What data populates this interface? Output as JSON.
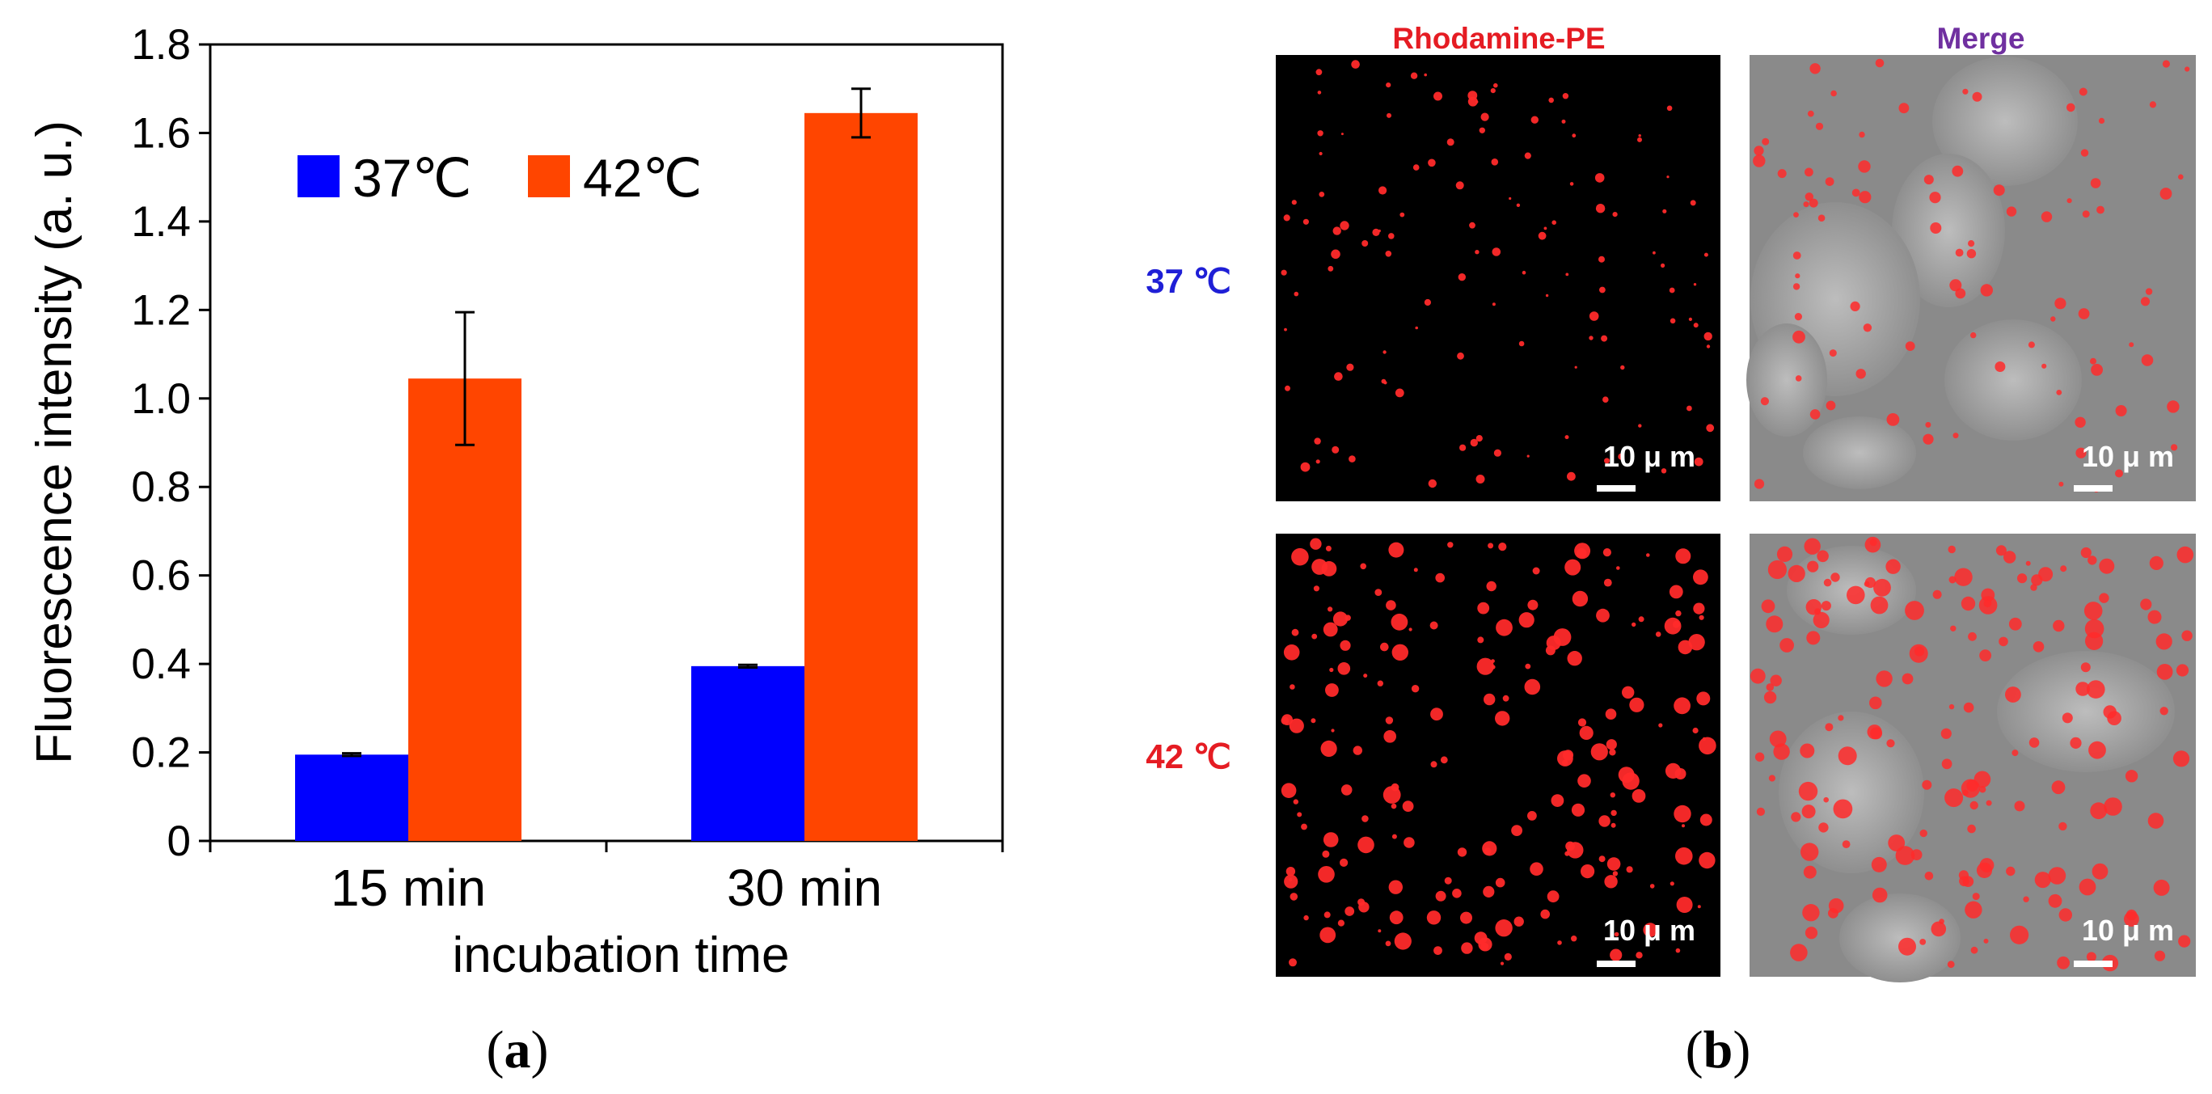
{
  "panel_a": {
    "label_open": "(",
    "label_letter": "a",
    "label_close": ")"
  },
  "panel_b": {
    "label_open": "(",
    "label_letter": "b",
    "label_close": ")",
    "col_headers": [
      "Rhodamine-PE",
      "Merge"
    ],
    "col_header_colors": [
      "#e51c23",
      "#7030a0"
    ],
    "row_labels": [
      "37 ℃",
      "42 ℃"
    ],
    "row_label_colors": [
      "#1f1fd6",
      "#e51c23"
    ],
    "scale_bar_label": "10 μ m"
  },
  "chart_data": {
    "type": "bar",
    "categories": [
      "15 min",
      "30 min"
    ],
    "series": [
      {
        "name": "37℃",
        "color": "#0000ff",
        "values": [
          0.195,
          0.395
        ],
        "errors": [
          0.003,
          0.003
        ]
      },
      {
        "name": "42℃",
        "color": "#ff4500",
        "values": [
          1.045,
          1.645
        ],
        "errors": [
          0.15,
          0.055
        ]
      }
    ],
    "xlabel": "incubation time",
    "ylabel": "Fluorescence intensity (a. u.)",
    "ylim": [
      0,
      1.8
    ],
    "yticks": [
      "0",
      "0.2",
      "0.4",
      "0.6",
      "0.8",
      "1.0",
      "1.2",
      "1.4",
      "1.6",
      "1.8"
    ],
    "legend_position": "top-left",
    "grid": false
  }
}
